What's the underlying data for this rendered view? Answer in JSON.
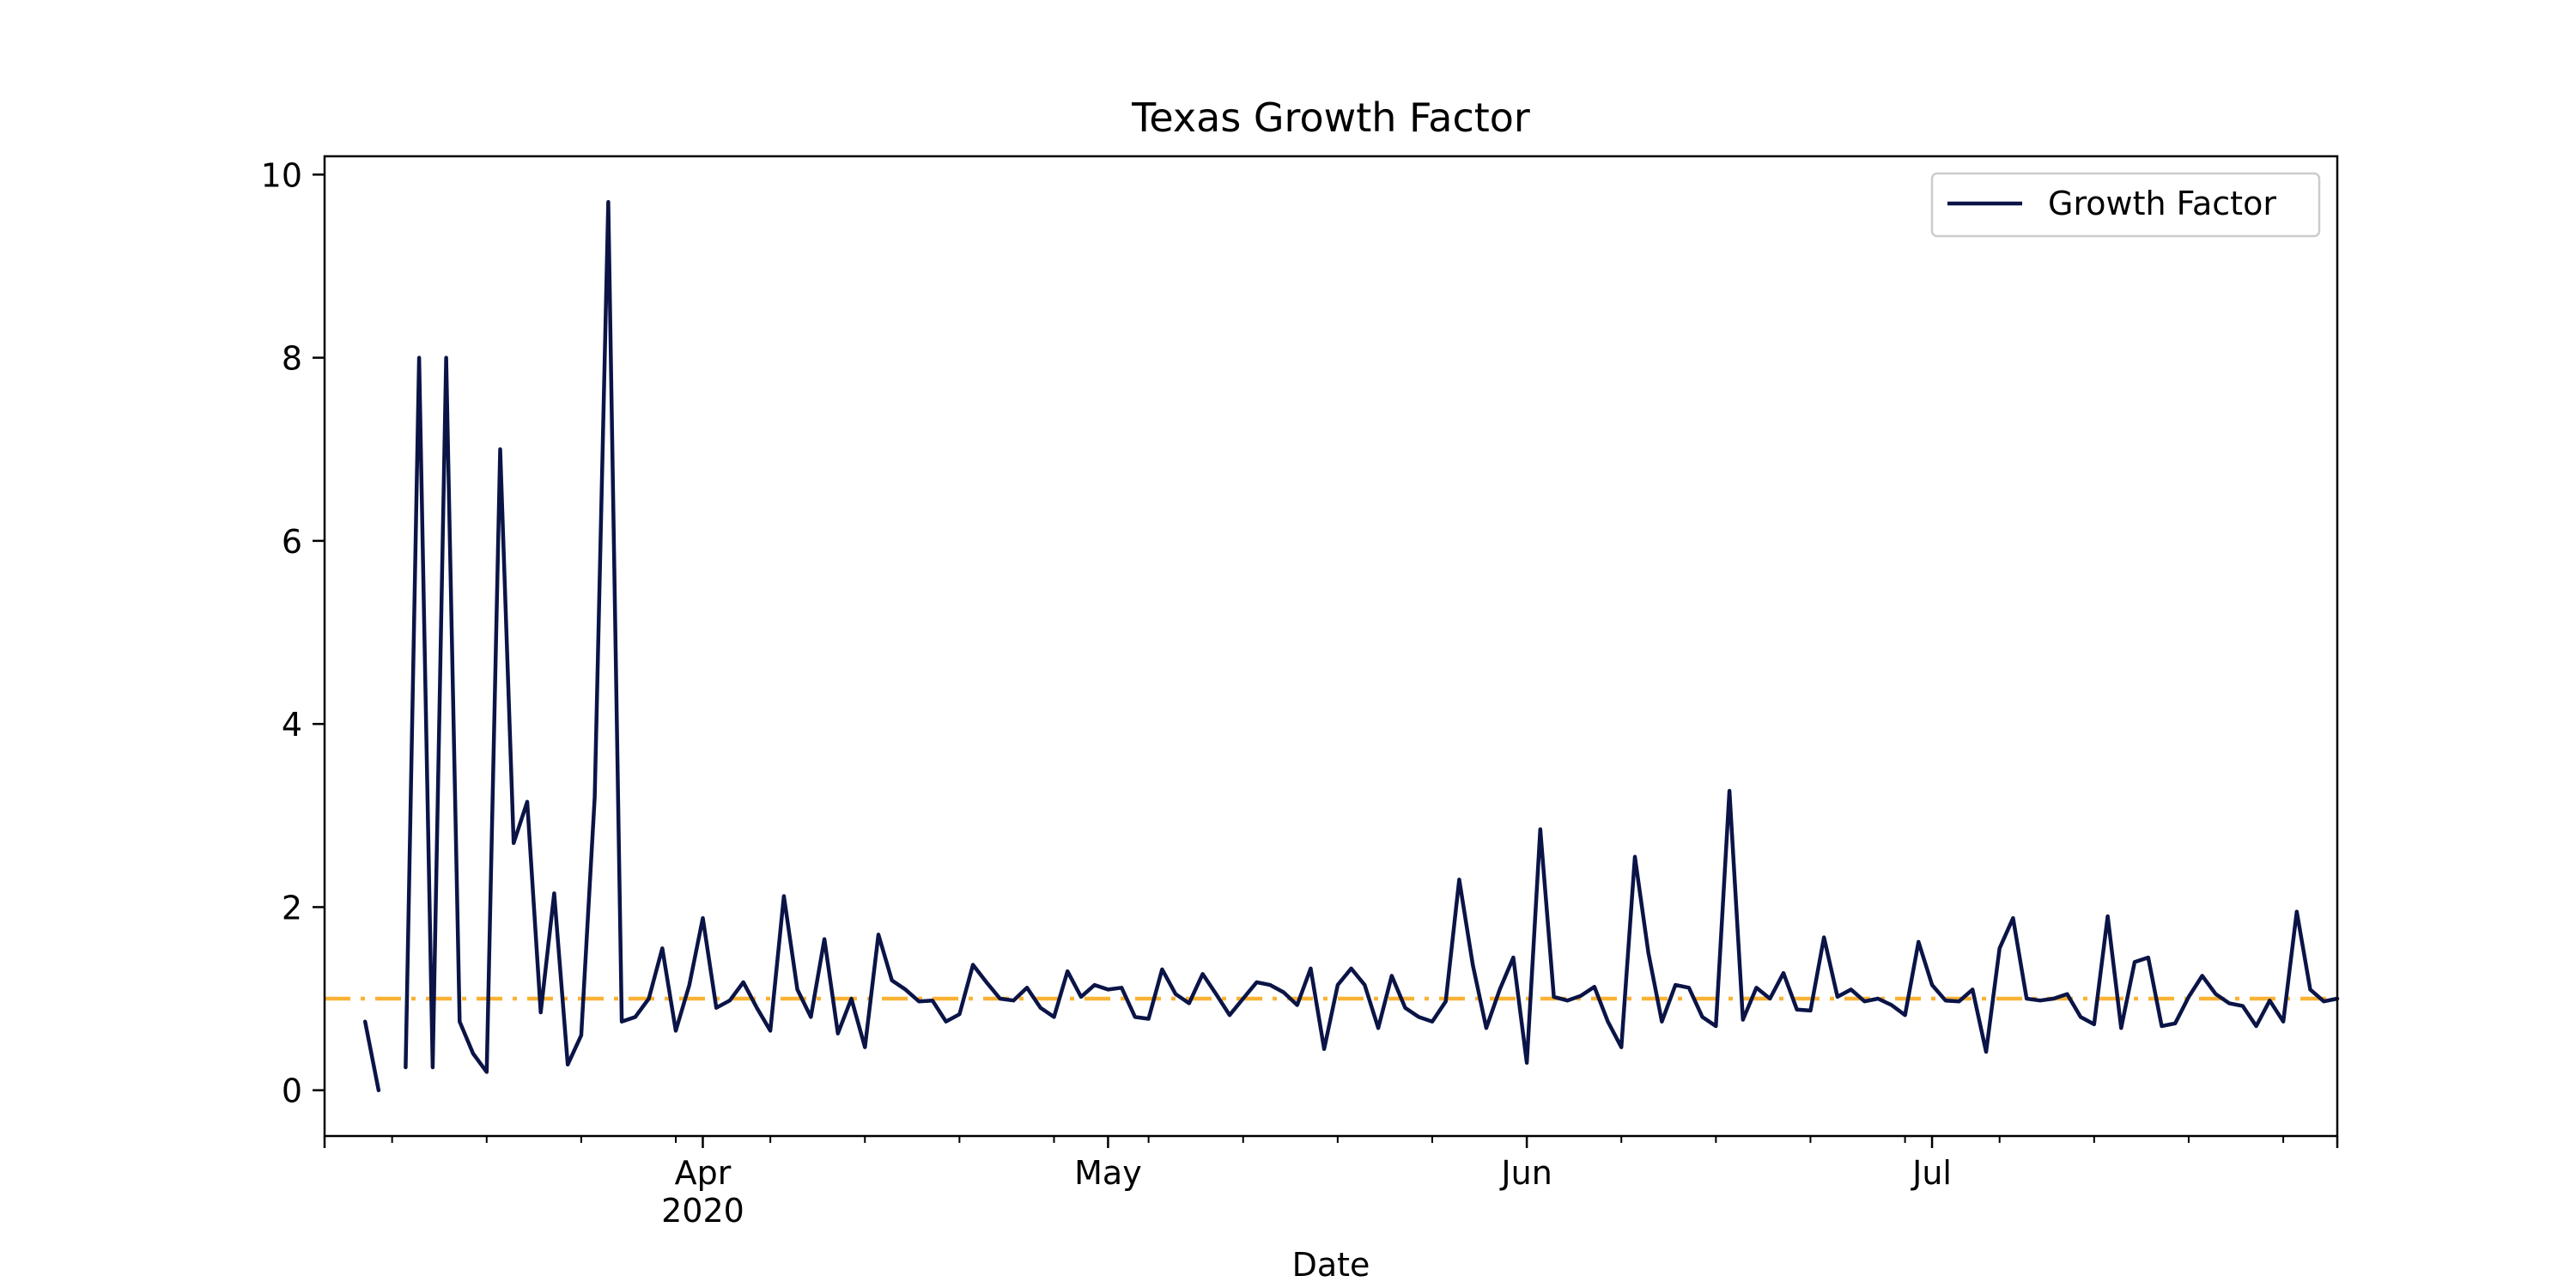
{
  "chart_data": {
    "type": "line",
    "title": "Texas Growth Factor",
    "xlabel": "Date",
    "ylabel": "",
    "x_type": "date",
    "xlim": [
      "2020-03-04",
      "2020-07-31"
    ],
    "ylim": [
      -0.5,
      10.2
    ],
    "y_ticks": [
      0,
      2,
      4,
      6,
      8,
      10
    ],
    "x_major_ticks": [
      {
        "date": "2020-04-01",
        "label": "Apr",
        "sublabel": "2020"
      },
      {
        "date": "2020-05-01",
        "label": "May",
        "sublabel": ""
      },
      {
        "date": "2020-06-01",
        "label": "Jun",
        "sublabel": ""
      },
      {
        "date": "2020-07-01",
        "label": "Jul",
        "sublabel": ""
      }
    ],
    "x_minor_ticks": [
      "2020-03-09",
      "2020-03-16",
      "2020-03-23",
      "2020-03-30",
      "2020-04-06",
      "2020-04-13",
      "2020-04-20",
      "2020-04-27",
      "2020-05-04",
      "2020-05-11",
      "2020-05-18",
      "2020-05-25",
      "2020-06-08",
      "2020-06-15",
      "2020-06-22",
      "2020-06-29",
      "2020-07-06",
      "2020-07-13",
      "2020-07-20",
      "2020-07-27"
    ],
    "grid": false,
    "legend": {
      "position": "top-right",
      "entries": [
        "Growth Factor"
      ]
    },
    "colors": {
      "series": "#0b1446",
      "reference": "#fbb234"
    },
    "reference_line": {
      "y": 1,
      "style": "dash-dot"
    },
    "series": [
      {
        "name": "Growth Factor",
        "start_date": "2020-03-07",
        "values": [
          0.75,
          0,
          null,
          0.25,
          8.0,
          0.25,
          8.0,
          0.75,
          0.4,
          0.2,
          7.0,
          2.7,
          3.15,
          0.85,
          2.15,
          0.28,
          0.6,
          3.2,
          9.7,
          0.75,
          0.8,
          1.0,
          1.55,
          0.65,
          1.15,
          1.88,
          0.9,
          0.98,
          1.18,
          0.9,
          0.65,
          2.12,
          1.1,
          0.8,
          1.65,
          0.62,
          1.0,
          0.47,
          1.7,
          1.2,
          1.1,
          0.97,
          0.98,
          0.75,
          0.83,
          1.37,
          1.18,
          1.0,
          0.98,
          1.12,
          0.9,
          0.8,
          1.3,
          1.02,
          1.15,
          1.1,
          1.12,
          0.8,
          0.78,
          1.32,
          1.05,
          0.95,
          1.27,
          1.05,
          0.82,
          1.0,
          1.18,
          1.15,
          1.07,
          0.93,
          1.33,
          0.45,
          1.15,
          1.33,
          1.15,
          0.68,
          1.25,
          0.9,
          0.8,
          0.75,
          0.97,
          2.3,
          1.37,
          0.68,
          1.1,
          1.45,
          0.3,
          2.85,
          1.02,
          0.98,
          1.03,
          1.13,
          0.75,
          0.47,
          2.55,
          1.5,
          0.75,
          1.15,
          1.12,
          0.8,
          0.7,
          3.27,
          0.77,
          1.12,
          1.0,
          1.28,
          0.88,
          0.87,
          1.67,
          1.02,
          1.1,
          0.97,
          1.0,
          0.93,
          0.82,
          1.62,
          1.15,
          0.98,
          0.97,
          1.1,
          0.42,
          1.55,
          1.88,
          1.0,
          0.98,
          1.0,
          1.05,
          0.8,
          0.72,
          1.9,
          0.68,
          1.4,
          1.45,
          0.7,
          0.73,
          1.02,
          1.25,
          1.05,
          0.95,
          0.92,
          0.7,
          0.98,
          0.75,
          1.95,
          1.1,
          0.97,
          1.0
        ]
      }
    ]
  }
}
